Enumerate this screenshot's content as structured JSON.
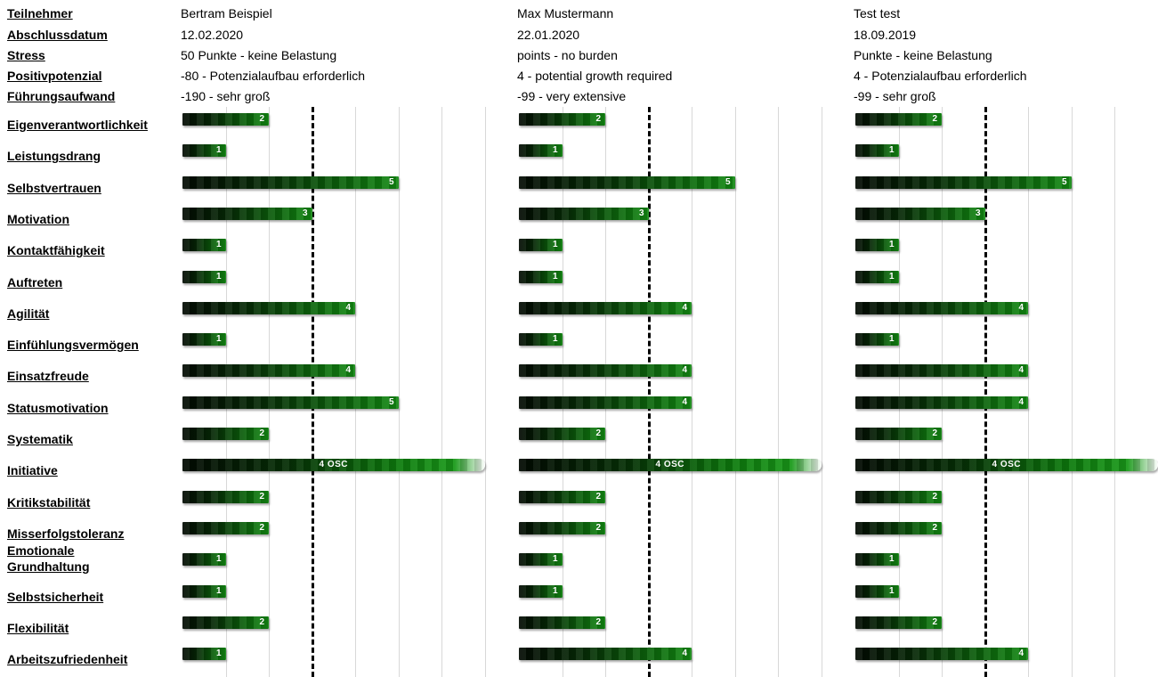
{
  "header_labels": {
    "participant": "Teilnehmer",
    "date": "Abschlussdatum",
    "stress": "Stress",
    "positive_potential": "Positivpotenzial",
    "leadership_effort": "Führungsaufwand"
  },
  "participants": [
    {
      "name": "Bertram Beispiel",
      "date": "12.02.2020",
      "stress": "50 Punkte - keine Belastung",
      "positive_potential": "-80 - Potenzialaufbau erforderlich",
      "leadership_effort": "-190 - sehr groß"
    },
    {
      "name": "Max Mustermann",
      "date": "22.01.2020",
      "stress": "points - no burden",
      "positive_potential": "4 - potential growth required",
      "leadership_effort": "-99 - very extensive"
    },
    {
      "name": "Test test",
      "date": "18.09.2019",
      "stress": "Punkte - keine Belastung",
      "positive_potential": "4 - Potenzialaufbau erforderlich",
      "leadership_effort": "-99 - sehr groß"
    }
  ],
  "scale": {
    "max": 7,
    "reference": 3
  },
  "traits": [
    {
      "label": "Eigenverantwortlichkeit",
      "values": [
        "2",
        "2",
        "2"
      ]
    },
    {
      "label": "Leistungsdrang",
      "values": [
        "1",
        "1",
        "1"
      ]
    },
    {
      "label": "Selbstvertrauen",
      "values": [
        "5",
        "5",
        "5"
      ]
    },
    {
      "label": "Motivation",
      "values": [
        "3",
        "3",
        "3"
      ]
    },
    {
      "label": "Kontaktfähigkeit",
      "values": [
        "1",
        "1",
        "1"
      ]
    },
    {
      "label": "Auftreten",
      "values": [
        "1",
        "1",
        "1"
      ]
    },
    {
      "label": "Agilität",
      "values": [
        "4",
        "4",
        "4"
      ]
    },
    {
      "label": "Einfühlungsvermögen",
      "values": [
        "1",
        "1",
        "1"
      ]
    },
    {
      "label": "Einsatzfreude",
      "values": [
        "4",
        "4",
        "4"
      ]
    },
    {
      "label": "Statusmotivation",
      "values": [
        "5",
        "4",
        "4"
      ]
    },
    {
      "label": "Systematik",
      "values": [
        "2",
        "2",
        "2"
      ]
    },
    {
      "label": "Initiative",
      "values": [
        "4 OSC",
        "4 OSC",
        "4 OSC"
      ]
    },
    {
      "label": "Kritikstabilität",
      "values": [
        "2",
        "2",
        "2"
      ]
    },
    {
      "label": "Misserfolgstoleranz",
      "values": [
        "2",
        "2",
        "2"
      ]
    },
    {
      "label": "Emotionale Grundhaltung",
      "values": [
        "1",
        "1",
        "1"
      ]
    },
    {
      "label": "Selbstsicherheit",
      "values": [
        "1",
        "1",
        "1"
      ]
    },
    {
      "label": "Flexibilität",
      "values": [
        "2",
        "2",
        "2"
      ]
    },
    {
      "label": "Arbeitszufriedenheit",
      "values": [
        "1",
        "4",
        "4"
      ]
    }
  ],
  "colors": {
    "bar_dark": "#020a02",
    "bar_light": "#138a13",
    "grid": "#d8d8d8",
    "reference_line": "#000000"
  }
}
